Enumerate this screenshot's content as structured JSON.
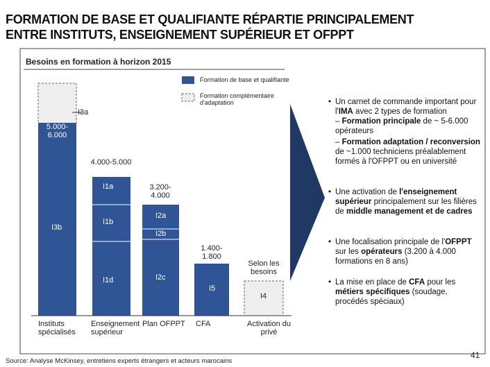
{
  "header": {
    "title_line1": "FORMATION DE BASE ET QUALIFIANTE RÉPARTIE PRINCIPALEMENT",
    "title_line2": "ENTRE INSTITUTS, ENSEIGNEMENT SUPÉRIEUR ET OFPPT"
  },
  "panel": {
    "subtitle": "Besoins en formation à horizon 2015",
    "legend": [
      "Formation de base et qualifiante",
      "Formation complémentaire d'adaptation"
    ],
    "columns": [
      {
        "category": "Instituts spécialisés",
        "range": "5.000-6.000",
        "segments": [
          "I3a",
          "I3b"
        ]
      },
      {
        "category": "Enseignement supérieur",
        "range": "4.000-5.000",
        "segments": [
          "I1a",
          "I1b",
          "I1d"
        ]
      },
      {
        "category": "Plan OFPPT",
        "range": "3.200-4.000",
        "segments": [
          "I2a",
          "I2b",
          "I2c"
        ]
      },
      {
        "category": "CFA",
        "range": "1.400-1.800",
        "segments": [
          "I5"
        ]
      },
      {
        "category": "Activation du privé",
        "range": "Selon les besoins",
        "segments": [
          "I4"
        ]
      }
    ]
  },
  "bullets": [
    [
      "Un carnet de commande important pour l'",
      "IMA",
      " avec 2 types de formation"
    ],
    [
      "– ",
      "Formation principale",
      " de ~ 5-6.000 opérateurs"
    ],
    [
      "– ",
      "Formation adaptation / reconversion",
      " de ~1.000 techniciens préalablement formés à l'OFPPT ou en université"
    ],
    [
      "Une activation de ",
      "l'enseignement supérieur",
      " principalement sur les filières de ",
      "middle management et de cadres"
    ],
    [
      "Une focalisation principale de l'",
      "OFPPT",
      " sur les ",
      "opérateurs",
      " (3.200 à 4.000 formations en 8 ans)"
    ],
    [
      "La mise en place de ",
      "CFA",
      " pour les ",
      "métiers spécifiques",
      " (soudage, procédés spéciaux)"
    ]
  ],
  "footer": {
    "source": "Source:  Analyse McKinsey, entretiens experts étrangers et acteurs marocains",
    "page": "41"
  }
}
